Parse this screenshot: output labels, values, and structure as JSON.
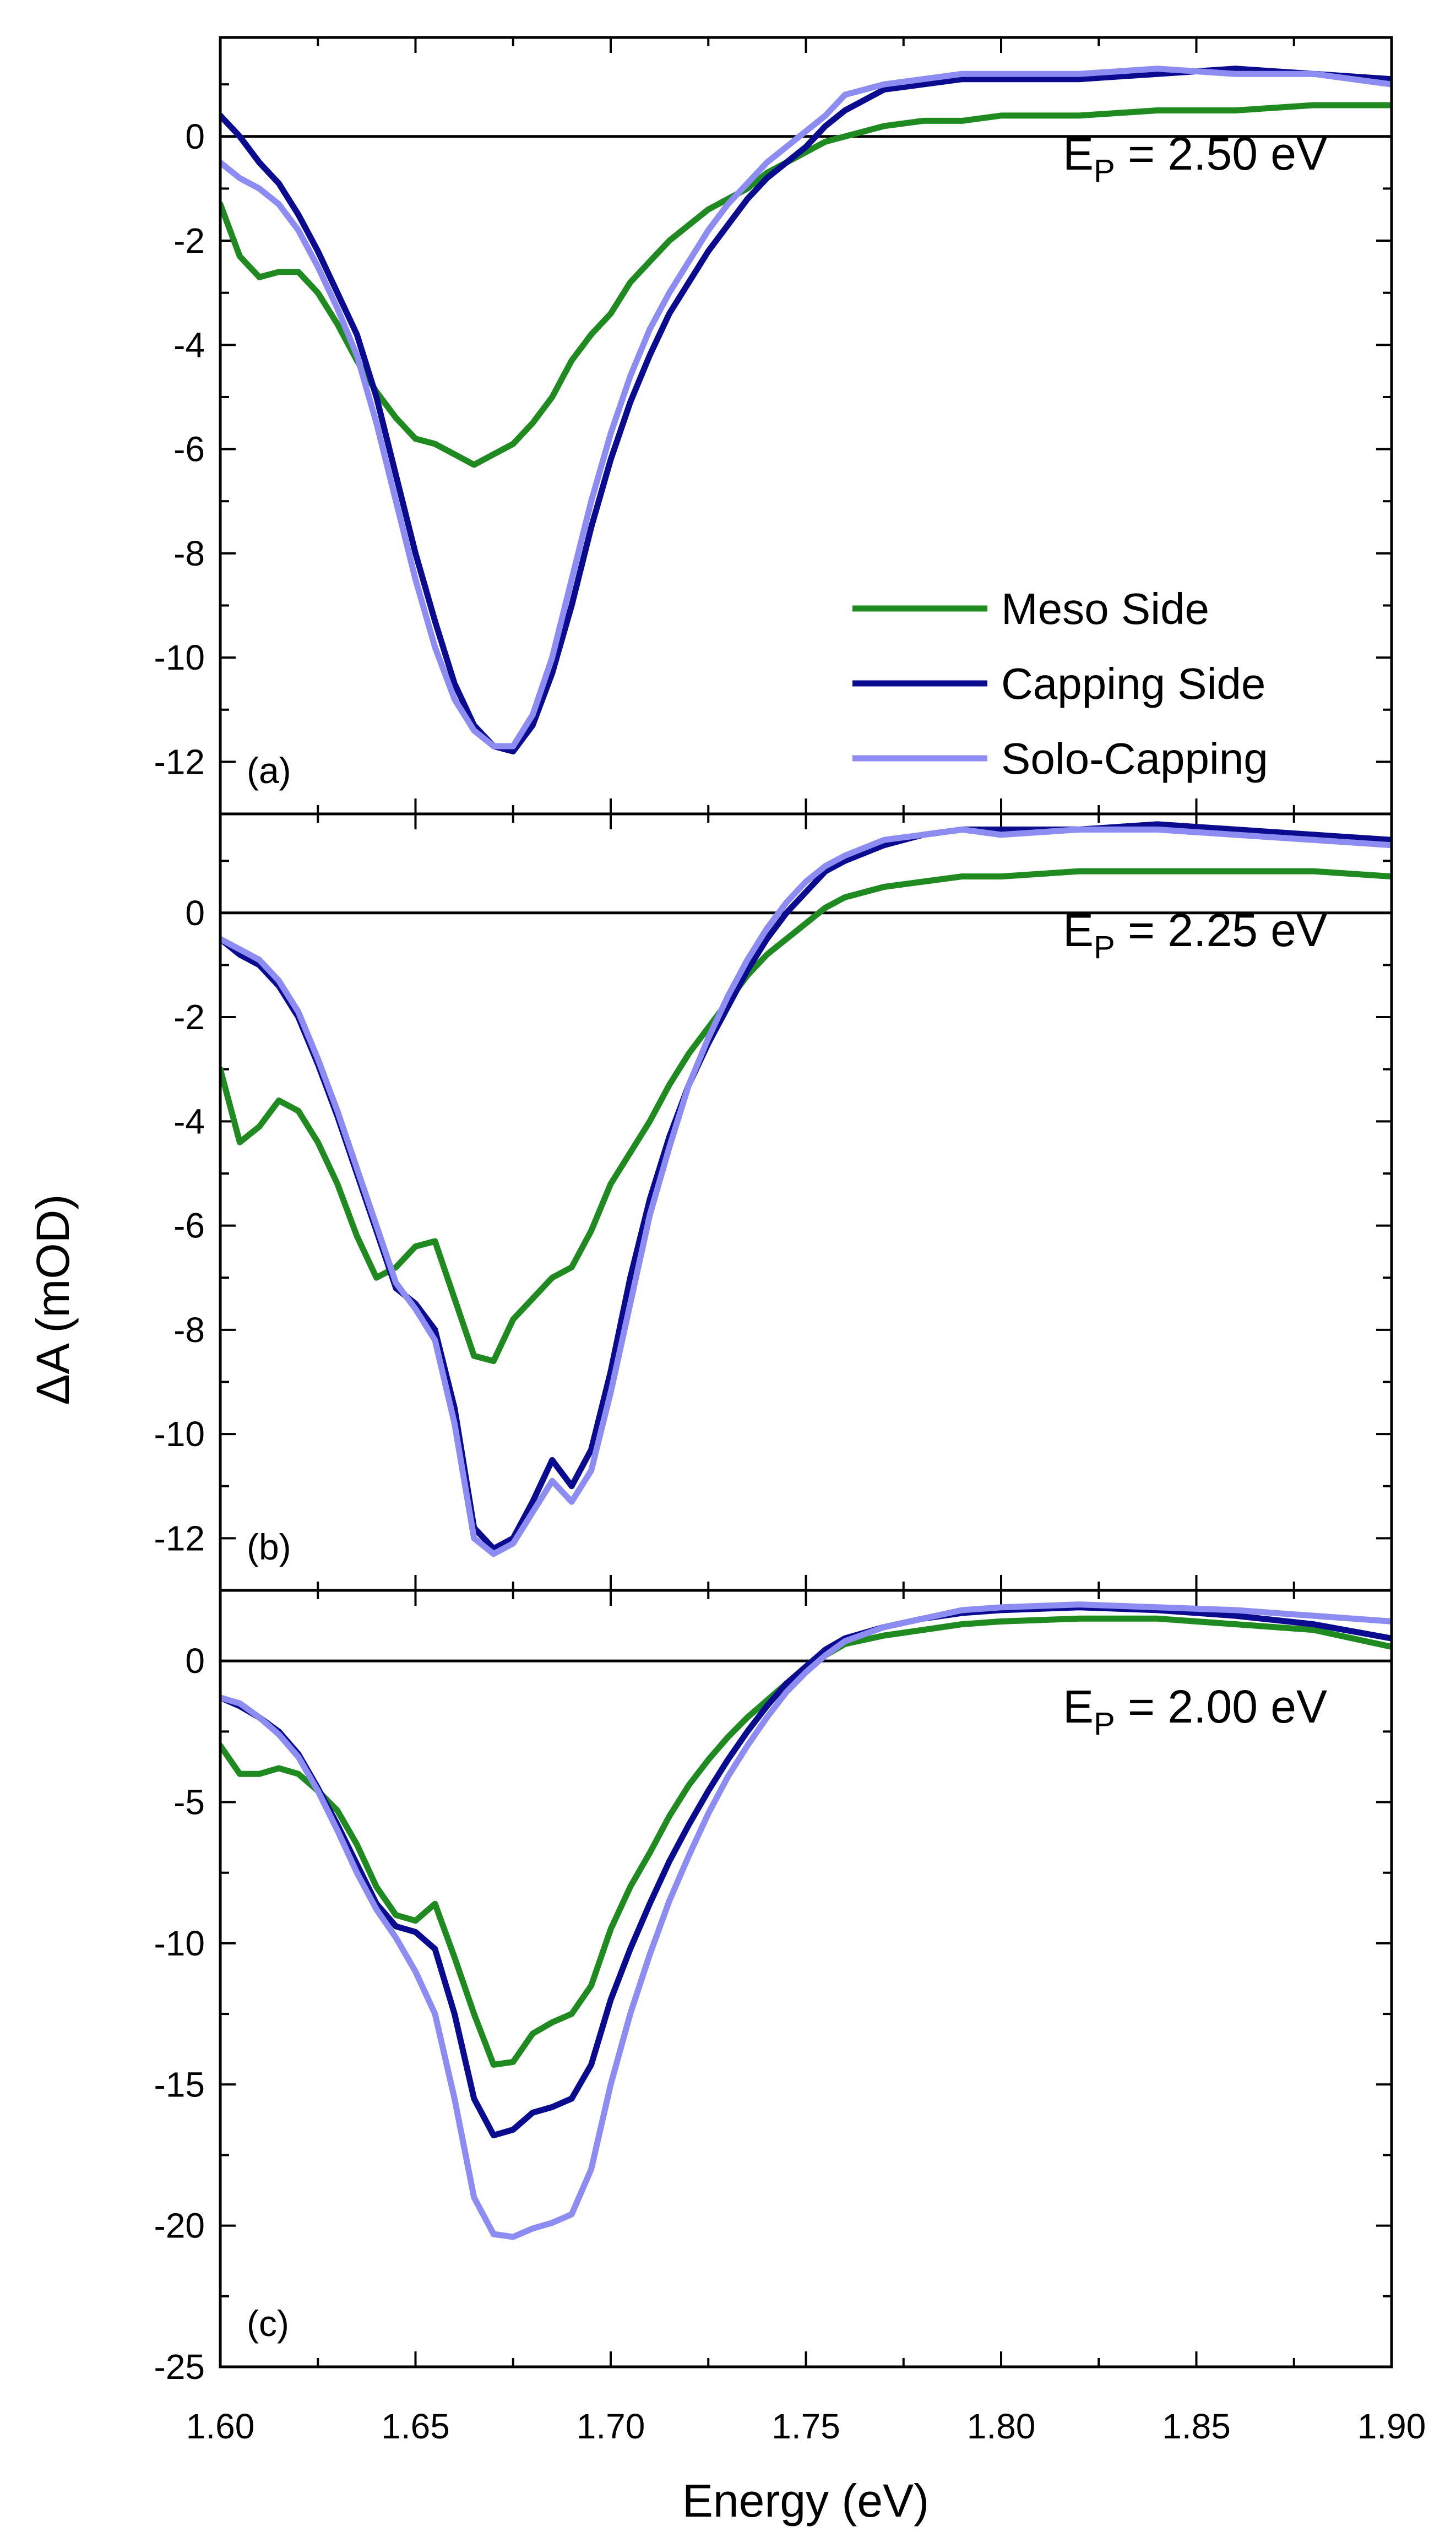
{
  "chart_data": {
    "type": "line",
    "xlabel": "Energy (eV)",
    "ylabel": "ΔA (mOD)",
    "xlim": [
      1.6,
      1.9
    ],
    "xticks": [
      1.6,
      1.65,
      1.7,
      1.75,
      1.8,
      1.85,
      1.9
    ],
    "xtick_labels": [
      "1.60",
      "1.65",
      "1.70",
      "1.75",
      "1.80",
      "1.85",
      "1.90"
    ],
    "legend": {
      "placement": "panel (a), lower-right",
      "entries": [
        {
          "name": "Meso Side",
          "color": "#1f8a1f"
        },
        {
          "name": "Capping Side",
          "color": "#0b0b8f"
        },
        {
          "name": "Solo-Capping",
          "color": "#8c8cf2"
        }
      ]
    },
    "panels": [
      {
        "label": "(a)",
        "ep_text": "= 2.50 eV",
        "ep_main": "E",
        "ep_sub": "P",
        "ylim": [
          -13,
          1.9
        ],
        "yticks": [
          0,
          -2,
          -4,
          -6,
          -8,
          -10,
          -12
        ],
        "ytick_labels": [
          "0",
          "-2",
          "-4",
          "-6",
          "-8",
          "-10",
          "-12"
        ],
        "series": [
          {
            "name": "Meso Side",
            "color": "#1f8a1f",
            "x": [
              1.6,
              1.605,
              1.61,
              1.615,
              1.62,
              1.625,
              1.63,
              1.635,
              1.64,
              1.645,
              1.65,
              1.655,
              1.66,
              1.665,
              1.67,
              1.675,
              1.68,
              1.685,
              1.69,
              1.695,
              1.7,
              1.705,
              1.71,
              1.715,
              1.72,
              1.725,
              1.73,
              1.735,
              1.74,
              1.745,
              1.75,
              1.755,
              1.76,
              1.77,
              1.78,
              1.79,
              1.8,
              1.82,
              1.84,
              1.86,
              1.88,
              1.9
            ],
            "y": [
              -1.3,
              -2.3,
              -2.7,
              -2.6,
              -2.6,
              -3.0,
              -3.6,
              -4.3,
              -4.9,
              -5.4,
              -5.8,
              -5.9,
              -6.1,
              -6.3,
              -6.1,
              -5.9,
              -5.5,
              -5.0,
              -4.3,
              -3.8,
              -3.4,
              -2.8,
              -2.4,
              -2.0,
              -1.7,
              -1.4,
              -1.2,
              -1.0,
              -0.7,
              -0.5,
              -0.3,
              -0.1,
              0.0,
              0.2,
              0.3,
              0.3,
              0.4,
              0.4,
              0.5,
              0.5,
              0.6,
              0.6
            ]
          },
          {
            "name": "Capping Side",
            "color": "#0b0b8f",
            "x": [
              1.6,
              1.605,
              1.61,
              1.615,
              1.62,
              1.625,
              1.63,
              1.635,
              1.64,
              1.645,
              1.65,
              1.655,
              1.66,
              1.665,
              1.67,
              1.675,
              1.68,
              1.685,
              1.69,
              1.695,
              1.7,
              1.705,
              1.71,
              1.715,
              1.72,
              1.725,
              1.73,
              1.735,
              1.74,
              1.745,
              1.75,
              1.755,
              1.76,
              1.77,
              1.78,
              1.79,
              1.8,
              1.82,
              1.84,
              1.86,
              1.88,
              1.9
            ],
            "y": [
              0.4,
              0.0,
              -0.5,
              -0.9,
              -1.5,
              -2.2,
              -3.0,
              -3.8,
              -5.0,
              -6.5,
              -8.0,
              -9.3,
              -10.5,
              -11.3,
              -11.7,
              -11.8,
              -11.3,
              -10.3,
              -9.0,
              -7.5,
              -6.2,
              -5.1,
              -4.2,
              -3.4,
              -2.8,
              -2.2,
              -1.7,
              -1.2,
              -0.8,
              -0.5,
              -0.2,
              0.2,
              0.5,
              0.9,
              1.0,
              1.1,
              1.1,
              1.1,
              1.2,
              1.3,
              1.2,
              1.1
            ]
          },
          {
            "name": "Solo-Capping",
            "color": "#8c8cf2",
            "x": [
              1.6,
              1.605,
              1.61,
              1.615,
              1.62,
              1.625,
              1.63,
              1.635,
              1.64,
              1.645,
              1.65,
              1.655,
              1.66,
              1.665,
              1.67,
              1.675,
              1.68,
              1.685,
              1.69,
              1.695,
              1.7,
              1.705,
              1.71,
              1.715,
              1.72,
              1.725,
              1.73,
              1.735,
              1.74,
              1.745,
              1.75,
              1.755,
              1.76,
              1.77,
              1.78,
              1.79,
              1.8,
              1.82,
              1.84,
              1.86,
              1.88,
              1.9
            ],
            "y": [
              -0.5,
              -0.8,
              -1.0,
              -1.3,
              -1.8,
              -2.5,
              -3.3,
              -4.2,
              -5.5,
              -7.0,
              -8.5,
              -9.8,
              -10.8,
              -11.4,
              -11.7,
              -11.7,
              -11.1,
              -10.0,
              -8.5,
              -7.0,
              -5.7,
              -4.6,
              -3.7,
              -3.0,
              -2.4,
              -1.8,
              -1.3,
              -0.9,
              -0.5,
              -0.2,
              0.1,
              0.4,
              0.8,
              1.0,
              1.1,
              1.2,
              1.2,
              1.2,
              1.3,
              1.2,
              1.2,
              1.0
            ]
          }
        ]
      },
      {
        "label": "(b)",
        "ep_text": "= 2.25 eV",
        "ep_main": "E",
        "ep_sub": "P",
        "ylim": [
          -13,
          1.9
        ],
        "yticks": [
          0,
          -2,
          -4,
          -6,
          -8,
          -10,
          -12
        ],
        "ytick_labels": [
          "0",
          "-2",
          "-4",
          "-6",
          "-8",
          "-10",
          "-12"
        ],
        "series": [
          {
            "name": "Meso Side",
            "color": "#1f8a1f",
            "x": [
              1.6,
              1.605,
              1.61,
              1.615,
              1.62,
              1.625,
              1.63,
              1.635,
              1.64,
              1.645,
              1.65,
              1.655,
              1.66,
              1.665,
              1.67,
              1.675,
              1.68,
              1.685,
              1.69,
              1.695,
              1.7,
              1.705,
              1.71,
              1.715,
              1.72,
              1.725,
              1.73,
              1.735,
              1.74,
              1.745,
              1.75,
              1.755,
              1.76,
              1.77,
              1.78,
              1.79,
              1.8,
              1.82,
              1.84,
              1.86,
              1.88,
              1.9
            ],
            "y": [
              -3.0,
              -4.4,
              -4.1,
              -3.6,
              -3.8,
              -4.4,
              -5.2,
              -6.2,
              -7.0,
              -6.8,
              -6.4,
              -6.3,
              -7.4,
              -8.5,
              -8.6,
              -7.8,
              -7.4,
              -7.0,
              -6.8,
              -6.1,
              -5.2,
              -4.6,
              -4.0,
              -3.3,
              -2.7,
              -2.2,
              -1.7,
              -1.2,
              -0.8,
              -0.5,
              -0.2,
              0.1,
              0.3,
              0.5,
              0.6,
              0.7,
              0.7,
              0.8,
              0.8,
              0.8,
              0.8,
              0.7
            ]
          },
          {
            "name": "Capping Side",
            "color": "#0b0b8f",
            "x": [
              1.6,
              1.605,
              1.61,
              1.615,
              1.62,
              1.625,
              1.63,
              1.635,
              1.64,
              1.645,
              1.65,
              1.655,
              1.66,
              1.665,
              1.67,
              1.675,
              1.68,
              1.685,
              1.69,
              1.695,
              1.7,
              1.705,
              1.71,
              1.715,
              1.72,
              1.725,
              1.73,
              1.735,
              1.74,
              1.745,
              1.75,
              1.755,
              1.76,
              1.77,
              1.78,
              1.79,
              1.8,
              1.82,
              1.84,
              1.86,
              1.88,
              1.9
            ],
            "y": [
              -0.5,
              -0.8,
              -1.0,
              -1.4,
              -2.0,
              -2.9,
              -3.9,
              -5.0,
              -6.1,
              -7.2,
              -7.5,
              -8.0,
              -9.5,
              -11.8,
              -12.2,
              -12.0,
              -11.3,
              -10.5,
              -11.0,
              -10.3,
              -8.8,
              -7.0,
              -5.5,
              -4.3,
              -3.3,
              -2.5,
              -1.8,
              -1.1,
              -0.5,
              0.0,
              0.4,
              0.8,
              1.0,
              1.3,
              1.5,
              1.6,
              1.6,
              1.6,
              1.7,
              1.6,
              1.5,
              1.4
            ]
          },
          {
            "name": "Solo-Capping",
            "color": "#8c8cf2",
            "x": [
              1.6,
              1.605,
              1.61,
              1.615,
              1.62,
              1.625,
              1.63,
              1.635,
              1.64,
              1.645,
              1.65,
              1.655,
              1.66,
              1.665,
              1.67,
              1.675,
              1.68,
              1.685,
              1.69,
              1.695,
              1.7,
              1.705,
              1.71,
              1.715,
              1.72,
              1.725,
              1.73,
              1.735,
              1.74,
              1.745,
              1.75,
              1.755,
              1.76,
              1.77,
              1.78,
              1.79,
              1.8,
              1.82,
              1.84,
              1.86,
              1.88,
              1.9
            ],
            "y": [
              -0.5,
              -0.7,
              -0.9,
              -1.3,
              -1.9,
              -2.8,
              -3.8,
              -4.9,
              -6.0,
              -7.1,
              -7.6,
              -8.2,
              -9.8,
              -12.0,
              -12.3,
              -12.1,
              -11.5,
              -10.9,
              -11.3,
              -10.7,
              -9.2,
              -7.5,
              -5.8,
              -4.5,
              -3.3,
              -2.4,
              -1.6,
              -0.9,
              -0.3,
              0.2,
              0.6,
              0.9,
              1.1,
              1.4,
              1.5,
              1.6,
              1.5,
              1.6,
              1.6,
              1.5,
              1.4,
              1.3
            ]
          }
        ]
      },
      {
        "label": "(c)",
        "ep_text": "= 2.00 eV",
        "ep_main": "E",
        "ep_sub": "P",
        "ylim": [
          -25,
          2.5
        ],
        "yticks": [
          0,
          -5,
          -10,
          -15,
          -20,
          -25
        ],
        "ytick_labels": [
          "0",
          "-5",
          "-10",
          "-15",
          "-20",
          "-25"
        ],
        "series": [
          {
            "name": "Meso Side",
            "color": "#1f8a1f",
            "x": [
              1.6,
              1.605,
              1.61,
              1.615,
              1.62,
              1.625,
              1.63,
              1.635,
              1.64,
              1.645,
              1.65,
              1.655,
              1.66,
              1.665,
              1.67,
              1.675,
              1.68,
              1.685,
              1.69,
              1.695,
              1.7,
              1.705,
              1.71,
              1.715,
              1.72,
              1.725,
              1.73,
              1.735,
              1.74,
              1.745,
              1.75,
              1.755,
              1.76,
              1.77,
              1.78,
              1.79,
              1.8,
              1.82,
              1.84,
              1.86,
              1.88,
              1.9
            ],
            "y": [
              -3.0,
              -4.0,
              -4.0,
              -3.8,
              -4.0,
              -4.6,
              -5.3,
              -6.5,
              -8.0,
              -9.0,
              -9.2,
              -8.6,
              -10.5,
              -12.5,
              -14.3,
              -14.2,
              -13.2,
              -12.8,
              -12.5,
              -11.5,
              -9.5,
              -8.0,
              -6.8,
              -5.5,
              -4.4,
              -3.5,
              -2.7,
              -2.0,
              -1.4,
              -0.8,
              -0.3,
              0.2,
              0.6,
              0.9,
              1.1,
              1.3,
              1.4,
              1.5,
              1.5,
              1.3,
              1.1,
              0.5
            ]
          },
          {
            "name": "Capping Side",
            "color": "#0b0b8f",
            "x": [
              1.6,
              1.605,
              1.61,
              1.615,
              1.62,
              1.625,
              1.63,
              1.635,
              1.64,
              1.645,
              1.65,
              1.655,
              1.66,
              1.665,
              1.67,
              1.675,
              1.68,
              1.685,
              1.69,
              1.695,
              1.7,
              1.705,
              1.71,
              1.715,
              1.72,
              1.725,
              1.73,
              1.735,
              1.74,
              1.745,
              1.75,
              1.755,
              1.76,
              1.77,
              1.78,
              1.79,
              1.8,
              1.82,
              1.84,
              1.86,
              1.88,
              1.9
            ],
            "y": [
              -1.3,
              -1.6,
              -2.0,
              -2.5,
              -3.3,
              -4.5,
              -5.8,
              -7.2,
              -8.6,
              -9.4,
              -9.6,
              -10.2,
              -12.5,
              -15.5,
              -16.8,
              -16.6,
              -16.0,
              -15.8,
              -15.5,
              -14.3,
              -12.0,
              -10.2,
              -8.6,
              -7.1,
              -5.8,
              -4.6,
              -3.5,
              -2.5,
              -1.6,
              -0.8,
              -0.2,
              0.4,
              0.8,
              1.2,
              1.5,
              1.7,
              1.8,
              1.9,
              1.8,
              1.6,
              1.3,
              0.8
            ]
          },
          {
            "name": "Solo-Capping",
            "color": "#8c8cf2",
            "x": [
              1.6,
              1.605,
              1.61,
              1.615,
              1.62,
              1.625,
              1.63,
              1.635,
              1.64,
              1.645,
              1.65,
              1.655,
              1.66,
              1.665,
              1.67,
              1.675,
              1.68,
              1.685,
              1.69,
              1.695,
              1.7,
              1.705,
              1.71,
              1.715,
              1.72,
              1.725,
              1.73,
              1.735,
              1.74,
              1.745,
              1.75,
              1.755,
              1.76,
              1.77,
              1.78,
              1.79,
              1.8,
              1.82,
              1.84,
              1.86,
              1.88,
              1.9
            ],
            "y": [
              -1.3,
              -1.5,
              -2.0,
              -2.6,
              -3.4,
              -4.6,
              -6.0,
              -7.5,
              -8.8,
              -9.8,
              -11.0,
              -12.5,
              -15.5,
              -19.0,
              -20.3,
              -20.4,
              -20.1,
              -19.9,
              -19.6,
              -18.0,
              -15.0,
              -12.5,
              -10.4,
              -8.5,
              -6.9,
              -5.4,
              -4.1,
              -3.0,
              -2.0,
              -1.1,
              -0.4,
              0.2,
              0.7,
              1.2,
              1.5,
              1.8,
              1.9,
              2.0,
              1.9,
              1.8,
              1.6,
              1.4
            ]
          }
        ]
      }
    ]
  }
}
